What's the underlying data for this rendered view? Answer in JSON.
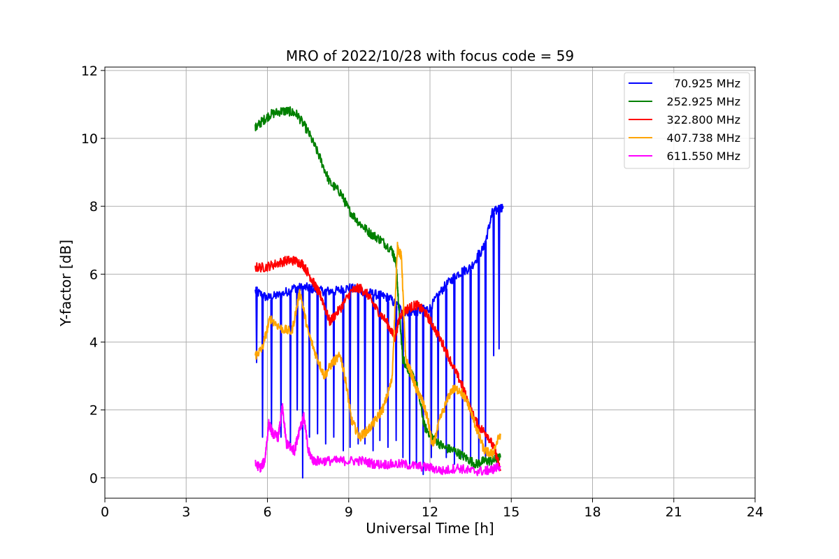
{
  "chart_data": {
    "type": "line",
    "title": "MRO of 2022/10/28 with focus code = 59",
    "xlabel": "Universal Time [h]",
    "ylabel": "Y-factor [dB]",
    "xlim": [
      0,
      24
    ],
    "ylim": [
      -0.6,
      12.1
    ],
    "xticks": [
      "0",
      "3",
      "6",
      "9",
      "12",
      "15",
      "18",
      "21",
      "24"
    ],
    "yticks": [
      "0",
      "2",
      "4",
      "6",
      "8",
      "10",
      "12"
    ],
    "grid": true,
    "legend_position": "top-right",
    "series": [
      {
        "name": "70.925 MHz",
        "color": "#0000ff",
        "x": [
          5.55,
          6.0,
          6.5,
          7.0,
          7.5,
          8.0,
          8.5,
          9.0,
          9.5,
          10.0,
          10.5,
          11.0,
          11.5,
          12.0,
          12.5,
          13.0,
          13.5,
          14.0,
          14.3,
          14.7
        ],
        "y": [
          5.5,
          5.3,
          5.4,
          5.6,
          5.6,
          5.5,
          5.5,
          5.6,
          5.5,
          5.4,
          5.3,
          4.9,
          4.9,
          5.0,
          5.6,
          6.0,
          6.2,
          6.8,
          7.8,
          8.0
        ],
        "dips": [
          [
            5.6,
            3.4
          ],
          [
            5.82,
            1.2
          ],
          [
            6.15,
            1.4
          ],
          [
            6.5,
            1.2
          ],
          [
            6.85,
            1.0
          ],
          [
            7.1,
            2.0
          ],
          [
            7.3,
            0.0
          ],
          [
            7.55,
            1.2
          ],
          [
            7.85,
            1.3
          ],
          [
            8.15,
            1.0
          ],
          [
            8.45,
            1.2
          ],
          [
            8.8,
            0.8
          ],
          [
            9.05,
            0.9
          ],
          [
            9.35,
            1.0
          ],
          [
            9.6,
            1.0
          ],
          [
            9.9,
            0.8
          ],
          [
            10.15,
            1.1
          ],
          [
            10.45,
            0.9
          ],
          [
            10.75,
            1.1
          ],
          [
            11.0,
            0.6
          ],
          [
            11.25,
            0.4
          ],
          [
            11.5,
            0.3
          ],
          [
            11.75,
            0.1
          ],
          [
            12.05,
            0.6
          ],
          [
            12.3,
            1.0
          ],
          [
            12.6,
            0.6
          ],
          [
            12.9,
            0.4
          ],
          [
            13.2,
            0.6
          ],
          [
            13.5,
            0.5
          ],
          [
            13.8,
            0.5
          ],
          [
            14.05,
            0.6
          ],
          [
            14.35,
            3.6
          ],
          [
            14.55,
            3.8
          ]
        ]
      },
      {
        "name": "252.925 MHz",
        "color": "#008000",
        "x": [
          5.55,
          5.8,
          6.1,
          6.5,
          6.8,
          7.1,
          7.5,
          7.9,
          8.3,
          8.7,
          9.0,
          9.4,
          9.8,
          10.2,
          10.6,
          10.75,
          10.85,
          11.0,
          11.2,
          11.5,
          11.8,
          12.1,
          12.5,
          12.9,
          13.3,
          13.7,
          14.0,
          14.3,
          14.6
        ],
        "y": [
          10.3,
          10.5,
          10.7,
          10.8,
          10.8,
          10.7,
          10.2,
          9.5,
          8.7,
          8.4,
          7.9,
          7.5,
          7.2,
          7.0,
          6.7,
          6.3,
          5.0,
          3.5,
          3.2,
          2.8,
          1.5,
          1.2,
          0.9,
          0.8,
          0.6,
          0.4,
          0.5,
          0.5,
          0.6
        ]
      },
      {
        "name": "322.800 MHz",
        "color": "#ff0000",
        "x": [
          5.55,
          5.9,
          6.3,
          6.7,
          7.0,
          7.3,
          7.6,
          7.8,
          8.0,
          8.3,
          8.7,
          9.1,
          9.4,
          9.7,
          10.0,
          10.4,
          10.7,
          10.9,
          11.2,
          11.5,
          11.8,
          12.1,
          12.5,
          12.9,
          13.2,
          13.5,
          13.8,
          14.1,
          14.4,
          14.6
        ],
        "y": [
          6.2,
          6.2,
          6.3,
          6.4,
          6.4,
          6.3,
          5.9,
          5.6,
          5.3,
          4.6,
          5.0,
          5.5,
          5.6,
          5.4,
          5.0,
          4.6,
          4.1,
          4.8,
          5.0,
          5.1,
          4.9,
          4.5,
          3.9,
          3.2,
          2.7,
          2.0,
          1.5,
          1.3,
          0.8,
          0.2
        ]
      },
      {
        "name": "407.738 MHz",
        "color": "#ffa500",
        "x": [
          5.55,
          5.8,
          6.1,
          6.5,
          6.9,
          7.2,
          7.5,
          7.8,
          8.1,
          8.4,
          8.7,
          8.9,
          9.1,
          9.4,
          9.7,
          10.0,
          10.3,
          10.6,
          10.8,
          10.95,
          11.1,
          11.3,
          11.5,
          11.7,
          11.9,
          12.1,
          12.4,
          12.8,
          13.1,
          13.4,
          13.7,
          14.0,
          14.3,
          14.6
        ],
        "y": [
          3.6,
          3.8,
          4.7,
          4.4,
          4.3,
          5.5,
          4.3,
          3.6,
          3.0,
          3.4,
          3.6,
          2.8,
          1.7,
          1.2,
          1.4,
          1.7,
          2.1,
          2.9,
          6.8,
          6.5,
          3.5,
          3.1,
          2.6,
          2.3,
          1.8,
          0.9,
          1.8,
          2.6,
          2.6,
          2.2,
          1.5,
          0.8,
          0.7,
          1.3
        ]
      },
      {
        "name": "611.550 MHz",
        "color": "#ff00ff",
        "x": [
          5.55,
          5.75,
          5.9,
          6.05,
          6.2,
          6.4,
          6.55,
          6.7,
          6.85,
          7.0,
          7.2,
          7.35,
          7.5,
          7.7,
          8.0,
          8.5,
          9.0,
          9.5,
          10.0,
          10.5,
          11.0,
          11.5,
          12.0,
          12.5,
          13.0,
          13.5,
          14.0,
          14.3,
          14.6
        ],
        "y": [
          0.4,
          0.3,
          0.5,
          1.6,
          1.3,
          1.2,
          2.1,
          1.0,
          0.9,
          0.8,
          1.5,
          1.8,
          0.8,
          0.5,
          0.5,
          0.5,
          0.5,
          0.5,
          0.4,
          0.4,
          0.4,
          0.35,
          0.3,
          0.2,
          0.3,
          0.2,
          0.2,
          0.25,
          0.35
        ]
      }
    ]
  }
}
